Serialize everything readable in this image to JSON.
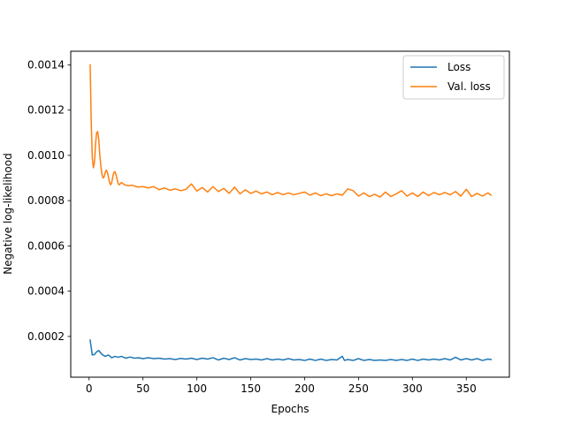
{
  "chart_data": {
    "type": "line",
    "xlabel": "Epochs",
    "ylabel": "Negative log-likelihood",
    "xlim": [
      -17,
      390
    ],
    "ylim": [
      2e-05,
      0.00146
    ],
    "xticks": [
      0,
      50,
      100,
      150,
      200,
      250,
      300,
      350
    ],
    "yticks": [
      0.0002,
      0.0004,
      0.0006,
      0.0008,
      0.001,
      0.0012,
      0.0014
    ],
    "ytick_labels": [
      "0.0002",
      "0.0004",
      "0.0006",
      "0.0008",
      "0.0010",
      "0.0012",
      "0.0014"
    ],
    "grid": false,
    "legend_position": "upper right",
    "series": [
      {
        "name": "Loss",
        "color": "#1f77b4",
        "points": [
          [
            1,
            0.000184
          ],
          [
            3,
            0.000118
          ],
          [
            5,
            0.00012
          ],
          [
            7,
            0.000132
          ],
          [
            9,
            0.000138
          ],
          [
            12,
            0.00012
          ],
          [
            15,
            0.000112
          ],
          [
            18,
            0.000118
          ],
          [
            21,
            0.000106
          ],
          [
            24,
            0.000112
          ],
          [
            27,
            0.000108
          ],
          [
            30,
            0.000112
          ],
          [
            34,
            0.000104
          ],
          [
            38,
            0.000109
          ],
          [
            42,
            0.000104
          ],
          [
            46,
            0.000106
          ],
          [
            50,
            0.000102
          ],
          [
            55,
            0.000106
          ],
          [
            60,
            0.000102
          ],
          [
            65,
            0.000104
          ],
          [
            70,
            0.0001
          ],
          [
            75,
            0.000102
          ],
          [
            80,
            9.8e-05
          ],
          [
            85,
            0.000103
          ],
          [
            90,
            0.0001
          ],
          [
            95,
            0.000104
          ],
          [
            100,
            9.8e-05
          ],
          [
            105,
            0.000104
          ],
          [
            110,
            0.0001
          ],
          [
            115,
            0.000106
          ],
          [
            120,
            9.6e-05
          ],
          [
            125,
            0.000104
          ],
          [
            130,
            9.8e-05
          ],
          [
            135,
            0.000106
          ],
          [
            140,
            9.6e-05
          ],
          [
            145,
            0.000102
          ],
          [
            150,
            9.8e-05
          ],
          [
            155,
            0.0001
          ],
          [
            160,
            9.6e-05
          ],
          [
            165,
            0.000102
          ],
          [
            170,
            9.6e-05
          ],
          [
            175,
            0.0001
          ],
          [
            180,
            9.6e-05
          ],
          [
            185,
            0.000102
          ],
          [
            190,
            9.6e-05
          ],
          [
            195,
            9.8e-05
          ],
          [
            200,
            9.4e-05
          ],
          [
            205,
            0.0001
          ],
          [
            210,
            9.4e-05
          ],
          [
            215,
            0.0001
          ],
          [
            220,
            9.4e-05
          ],
          [
            225,
            9.8e-05
          ],
          [
            230,
            9.6e-05
          ],
          [
            235,
            0.000112
          ],
          [
            237,
            9.4e-05
          ],
          [
            240,
            9.8e-05
          ],
          [
            245,
            9.4e-05
          ],
          [
            250,
            0.000102
          ],
          [
            255,
            9.4e-05
          ],
          [
            260,
            9.8e-05
          ],
          [
            265,
            9.4e-05
          ],
          [
            270,
            9.6e-05
          ],
          [
            275,
            9.4e-05
          ],
          [
            280,
            9.8e-05
          ],
          [
            285,
            9.4e-05
          ],
          [
            290,
            9.8e-05
          ],
          [
            295,
            9.4e-05
          ],
          [
            300,
            0.0001
          ],
          [
            305,
            9.4e-05
          ],
          [
            310,
            0.0001
          ],
          [
            315,
            9.6e-05
          ],
          [
            320,
            0.0001
          ],
          [
            325,
            9.6e-05
          ],
          [
            330,
            0.000102
          ],
          [
            335,
            9.6e-05
          ],
          [
            340,
            0.000108
          ],
          [
            345,
            9.6e-05
          ],
          [
            350,
            0.000102
          ],
          [
            355,
            9.6e-05
          ],
          [
            360,
            0.000102
          ],
          [
            365,
            9.4e-05
          ],
          [
            370,
            0.0001
          ],
          [
            373,
            9.8e-05
          ]
        ]
      },
      {
        "name": "Val. loss",
        "color": "#ff7f0e",
        "points": [
          [
            1,
            0.0014
          ],
          [
            2,
            0.00115
          ],
          [
            3,
            0.00099
          ],
          [
            4,
            0.000945
          ],
          [
            5,
            0.00097
          ],
          [
            6,
            0.00105
          ],
          [
            7,
            0.0011
          ],
          [
            8,
            0.001105
          ],
          [
            9,
            0.00107
          ],
          [
            10,
            0.001
          ],
          [
            11,
            0.00095
          ],
          [
            12,
            0.000915
          ],
          [
            13,
            0.0009
          ],
          [
            14,
            0.000905
          ],
          [
            15,
            0.000925
          ],
          [
            16,
            0.000935
          ],
          [
            17,
            0.000925
          ],
          [
            18,
            0.000905
          ],
          [
            19,
            0.00088
          ],
          [
            20,
            0.00087
          ],
          [
            21,
            0.00088
          ],
          [
            22,
            0.000905
          ],
          [
            23,
            0.000925
          ],
          [
            24,
            0.000928
          ],
          [
            25,
            0.000915
          ],
          [
            26,
            0.000895
          ],
          [
            27,
            0.000875
          ],
          [
            28,
            0.00087
          ],
          [
            30,
            0.00088
          ],
          [
            33,
            0.00087
          ],
          [
            36,
            0.000866
          ],
          [
            40,
            0.000868
          ],
          [
            45,
            0.00086
          ],
          [
            50,
            0.000862
          ],
          [
            55,
            0.000856
          ],
          [
            60,
            0.000862
          ],
          [
            65,
            0.000848
          ],
          [
            70,
            0.000856
          ],
          [
            75,
            0.000846
          ],
          [
            80,
            0.000852
          ],
          [
            85,
            0.000844
          ],
          [
            90,
            0.00085
          ],
          [
            95,
            0.000874
          ],
          [
            100,
            0.000842
          ],
          [
            105,
            0.000858
          ],
          [
            110,
            0.000838
          ],
          [
            115,
            0.000862
          ],
          [
            120,
            0.00084
          ],
          [
            125,
            0.000854
          ],
          [
            130,
            0.000832
          ],
          [
            135,
            0.00086
          ],
          [
            140,
            0.00083
          ],
          [
            145,
            0.000848
          ],
          [
            150,
            0.000832
          ],
          [
            155,
            0.000842
          ],
          [
            160,
            0.00083
          ],
          [
            165,
            0.000838
          ],
          [
            170,
            0.000826
          ],
          [
            175,
            0.000836
          ],
          [
            180,
            0.000826
          ],
          [
            185,
            0.000834
          ],
          [
            190,
            0.000826
          ],
          [
            195,
            0.000832
          ],
          [
            200,
            0.000838
          ],
          [
            205,
            0.000824
          ],
          [
            210,
            0.000834
          ],
          [
            215,
            0.000822
          ],
          [
            220,
            0.00083
          ],
          [
            225,
            0.000822
          ],
          [
            230,
            0.00083
          ],
          [
            235,
            0.000824
          ],
          [
            240,
            0.000852
          ],
          [
            245,
            0.000844
          ],
          [
            250,
            0.00082
          ],
          [
            255,
            0.000834
          ],
          [
            260,
            0.000818
          ],
          [
            265,
            0.000828
          ],
          [
            270,
            0.000816
          ],
          [
            275,
            0.000838
          ],
          [
            280,
            0.000818
          ],
          [
            285,
            0.00083
          ],
          [
            290,
            0.000844
          ],
          [
            295,
            0.00082
          ],
          [
            300,
            0.000834
          ],
          [
            305,
            0.000818
          ],
          [
            310,
            0.000838
          ],
          [
            315,
            0.000822
          ],
          [
            320,
            0.000836
          ],
          [
            325,
            0.000826
          ],
          [
            330,
            0.000836
          ],
          [
            335,
            0.000826
          ],
          [
            340,
            0.00084
          ],
          [
            345,
            0.00082
          ],
          [
            350,
            0.00085
          ],
          [
            355,
            0.000818
          ],
          [
            360,
            0.000832
          ],
          [
            365,
            0.00082
          ],
          [
            370,
            0.000834
          ],
          [
            373,
            0.000824
          ]
        ]
      }
    ]
  }
}
